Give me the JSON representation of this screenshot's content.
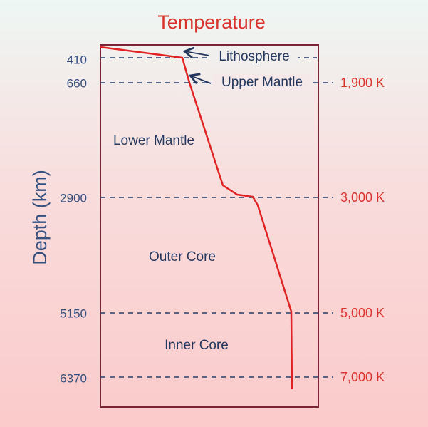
{
  "title": "Temperature",
  "axis_label": "Depth (km)",
  "levels": [
    {
      "depth": 410
    },
    {
      "depth": 660,
      "temperature": "1,900 K"
    },
    {
      "depth": 2900,
      "temperature": "3,000 K"
    },
    {
      "depth": 5150,
      "temperature": "5,000 K"
    },
    {
      "depth": 6370,
      "temperature": "7,000 K"
    }
  ],
  "layers": [
    "Lithosphere",
    "Upper Mantle",
    "Lower Mantle",
    "Outer Core",
    "Inner Core"
  ]
}
